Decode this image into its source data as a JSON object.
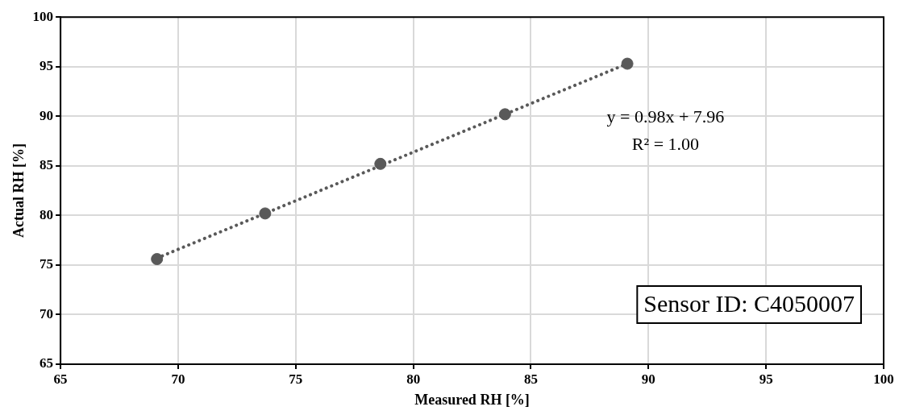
{
  "chart_data": {
    "type": "scatter",
    "xlabel": "Measured RH [%]",
    "ylabel": "Actual RH [%]",
    "x": [
      69.1,
      73.7,
      78.6,
      83.9,
      89.1
    ],
    "series": [
      {
        "type": "scatter",
        "color": "#595959",
        "marker": "circle",
        "values": [
          75.6,
          80.2,
          85.2,
          90.2,
          95.3
        ]
      },
      {
        "type": "line",
        "color": "#595959",
        "marker": "none",
        "line_style": "dotted",
        "x": [
          69.1,
          89.1
        ],
        "values": [
          75.7,
          95.3
        ]
      }
    ],
    "xlim": [
      65,
      100
    ],
    "xticks": [
      65,
      70,
      75,
      80,
      85,
      90,
      95,
      100
    ],
    "ylim": [
      65,
      100
    ],
    "yticks": [
      65,
      70,
      75,
      80,
      85,
      90,
      95,
      100
    ],
    "grid": true,
    "annotations": [
      "y = 0.98x + 7.96",
      "R² = 1.00",
      "Sensor ID: C4050007"
    ]
  }
}
